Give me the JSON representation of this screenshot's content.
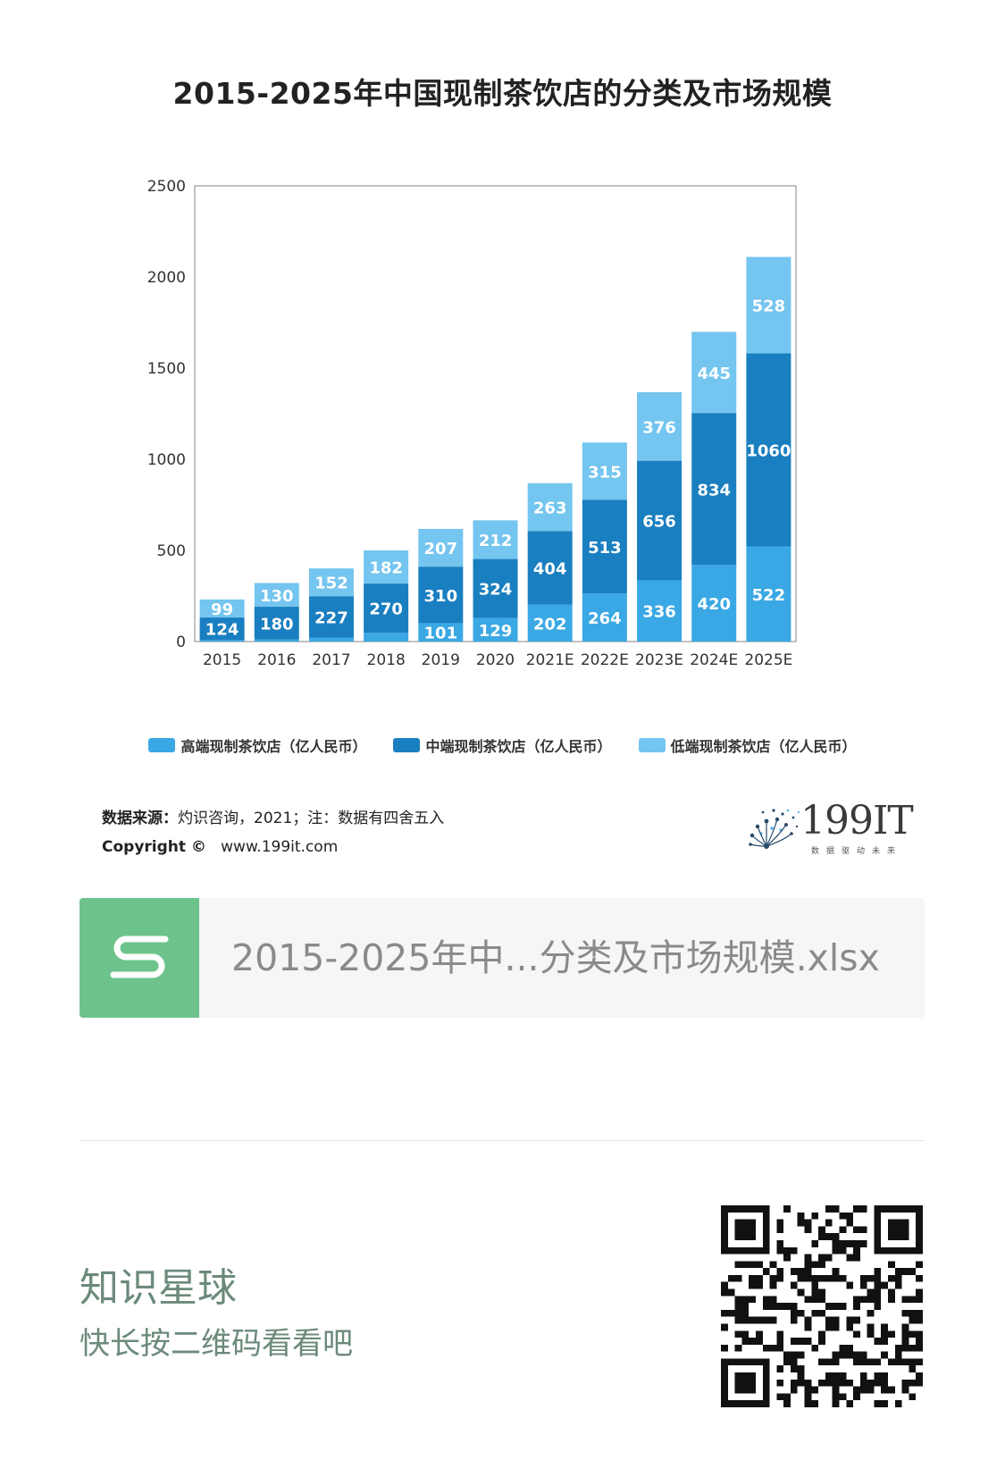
{
  "chart_data": {
    "type": "bar",
    "stacked": true,
    "title": "2015-2025年中国现制茶饮店的分类及市场规模",
    "categories": [
      "2015",
      "2016",
      "2017",
      "2018",
      "2019",
      "2020",
      "2021E",
      "2022E",
      "2023E",
      "2024E",
      "2025E"
    ],
    "series": [
      {
        "name": "高端现制茶饮店（亿人民币）",
        "values": [
          8,
          11,
          22,
          48,
          101,
          129,
          202,
          264,
          336,
          420,
          522
        ],
        "color": "#3aa8e4"
      },
      {
        "name": "中端现制茶饮店（亿人民币）",
        "values": [
          124,
          180,
          227,
          270,
          310,
          324,
          404,
          513,
          656,
          834,
          1060
        ],
        "color": "#1a7fc0"
      },
      {
        "name": "低端现制茶饮店（亿人民币）",
        "values": [
          99,
          130,
          152,
          182,
          207,
          212,
          263,
          315,
          376,
          445,
          528
        ],
        "color": "#74c5ef"
      }
    ],
    "ylim": [
      0,
      2500
    ],
    "yticks": [
      0,
      500,
      1000,
      1500,
      2000,
      2500
    ],
    "legend_position": "bottom",
    "grid": false
  },
  "source": {
    "label": "数据来源：",
    "text": "灼识咨询，2021；注：数据有四舍五入",
    "copyright": "Copyright ©",
    "url": "www.199it.com"
  },
  "logo": {
    "text": "199IT",
    "tagline": "数据驱动未来"
  },
  "file": {
    "name": "2015-2025年中...分类及市场规模.xlsx",
    "icon": "spreadsheet-s-icon",
    "icon_color": "#6dc38b"
  },
  "footer": {
    "title": "知识星球",
    "subtitle": "快长按二维码看看吧"
  }
}
